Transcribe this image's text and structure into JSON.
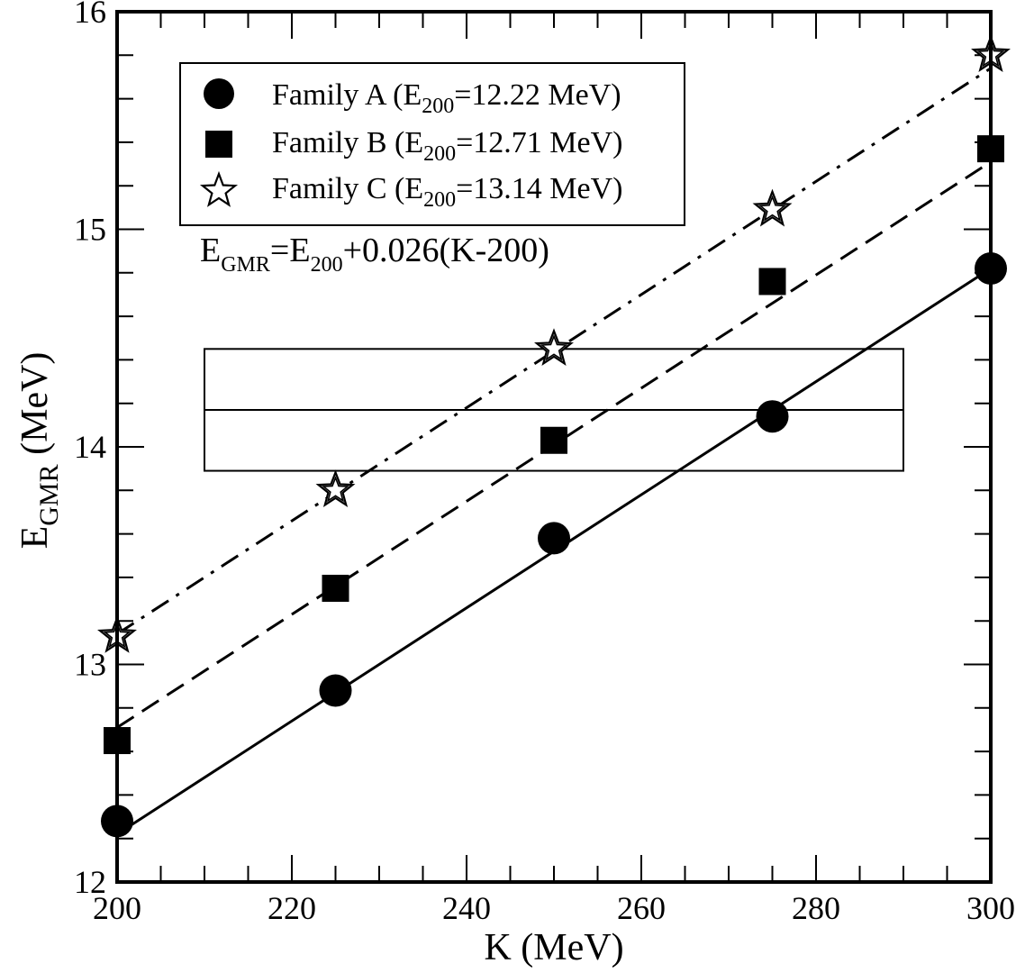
{
  "chart_data": {
    "type": "scatter",
    "xlabel": {
      "main": "K (MeV)"
    },
    "ylabel": {
      "main": "E",
      "sub": "GMR",
      "tail": " (MeV)"
    },
    "xlim": [
      200,
      300
    ],
    "ylim": [
      12,
      16
    ],
    "x_ticks": [
      200,
      220,
      240,
      260,
      280,
      300
    ],
    "y_ticks": [
      12,
      13,
      14,
      15,
      16
    ],
    "x_minor_step": 5,
    "y_minor_step": 0.2,
    "x": [
      200,
      225,
      250,
      275,
      300
    ],
    "grid": false,
    "legend_placement": "top-left",
    "series": [
      {
        "name": {
          "pre": "Family A (E",
          "sub": "200",
          "post": "=12.22 MeV)"
        },
        "marker": "circle",
        "values": [
          12.28,
          12.88,
          13.58,
          14.14,
          14.82
        ],
        "fit_intercept": 12.22,
        "line_style": "solid"
      },
      {
        "name": {
          "pre": "Family B (E",
          "sub": "200",
          "post": "=12.71 MeV)"
        },
        "marker": "square",
        "values": [
          12.65,
          13.35,
          14.03,
          14.76,
          15.37
        ],
        "fit_intercept": 12.71,
        "line_style": "dashed"
      },
      {
        "name": {
          "pre": "Family C (E",
          "sub": "200",
          "post": "=13.14 MeV)"
        },
        "marker": "star",
        "values": [
          13.13,
          13.8,
          14.45,
          15.09,
          15.8
        ],
        "fit_intercept": 13.14,
        "line_style": "dashdot"
      }
    ],
    "fit_slope": 0.026,
    "annotation": {
      "p1": "E",
      "s1": "GMR",
      "p2": "=E",
      "s2": "200",
      "p3": "+0.026(K-200)"
    },
    "band": {
      "x": [
        210,
        290
      ],
      "y_low": 13.89,
      "y_mid": 14.17,
      "y_high": 14.45
    },
    "colors": {
      "axis": "#000000",
      "marker": "#000000",
      "background": "#ffffff"
    }
  }
}
